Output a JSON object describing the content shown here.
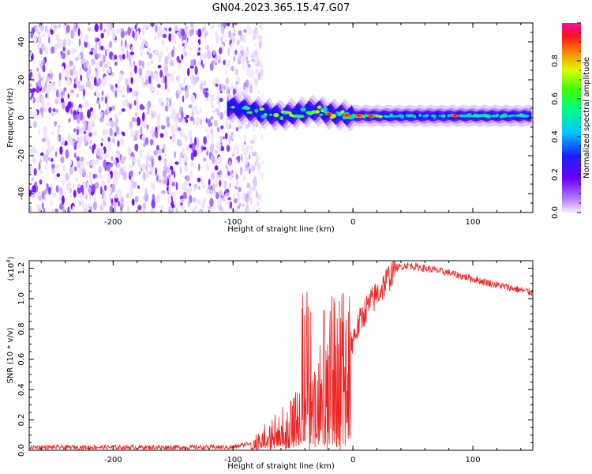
{
  "figure_title": "GN04.2023.365.15.47.G07",
  "chart_data": [
    {
      "type": "heatmap",
      "name": "spectrogram",
      "title": "GN04.2023.365.15.47.G07",
      "xlabel": "Height of straight line (km)",
      "ylabel": "Frequency (Hz)",
      "xlim": [
        -270,
        150
      ],
      "ylim": [
        -50,
        50
      ],
      "x_ticks": [
        -200,
        -100,
        0,
        100
      ],
      "y_ticks": [
        -40,
        -20,
        0,
        20,
        40
      ],
      "colorbar": {
        "label": "Normalized spectral amplitude",
        "range": [
          0,
          1
        ],
        "ticks": [
          0.0,
          0.2,
          0.4,
          0.6,
          0.8
        ],
        "tick_labels": [
          "0.0",
          "0.2",
          "0.4",
          "0.6",
          "0.8"
        ],
        "colormap": [
          "#f0e6ff",
          "#8b00ff",
          "#2020ff",
          "#00c8ff",
          "#00ff60",
          "#c8ff00",
          "#ff8000",
          "#ff0030",
          "#ff1090"
        ]
      },
      "noise_region_x": [
        -270,
        -85
      ],
      "signal_band": {
        "x_start": -105,
        "x_end": 150,
        "center_hz": [
          [
            -105,
            6
          ],
          [
            -80,
            3
          ],
          [
            -60,
            1
          ],
          [
            -40,
            3
          ],
          [
            -30,
            4
          ],
          [
            -20,
            2
          ],
          [
            0,
            1
          ],
          [
            20,
            1
          ],
          [
            60,
            1
          ],
          [
            100,
            1
          ],
          [
            150,
            1
          ]
        ],
        "peaks": [
          [
            -20,
            0.95
          ],
          [
            -5,
            0.95
          ],
          [
            5,
            0.9
          ],
          [
            15,
            0.8
          ],
          [
            85,
            0.75
          ]
        ]
      }
    },
    {
      "type": "line",
      "name": "snr",
      "xlabel": "Height of straight line (km)",
      "ylabel": "SNR (10 * v/v)",
      "scale_label": "(x10",
      "scale_exp": "4",
      "scale_close": ")",
      "xlim": [
        -270,
        150
      ],
      "ylim": [
        0,
        1.25
      ],
      "x_ticks": [
        -200,
        -100,
        0,
        100
      ],
      "y_ticks": [
        0.0,
        0.2,
        0.4,
        0.6,
        0.8,
        1.0,
        1.2
      ],
      "y_tick_labels": [
        "0.0",
        "0.2",
        "0.4",
        "0.6",
        "0.8",
        "1.0",
        "1.2"
      ],
      "color": "#ee2222",
      "series": [
        {
          "name": "SNR",
          "x": [
            -270,
            -100,
            -85,
            -70,
            -50,
            -35,
            -20,
            -10,
            -2,
            10,
            25,
            35,
            45,
            60,
            80,
            100,
            120,
            150
          ],
          "values": [
            0.02,
            0.02,
            0.05,
            0.14,
            0.22,
            0.38,
            0.52,
            0.62,
            0.7,
            0.92,
            1.08,
            1.2,
            1.22,
            1.2,
            1.17,
            1.13,
            1.09,
            1.04
          ]
        }
      ]
    }
  ]
}
